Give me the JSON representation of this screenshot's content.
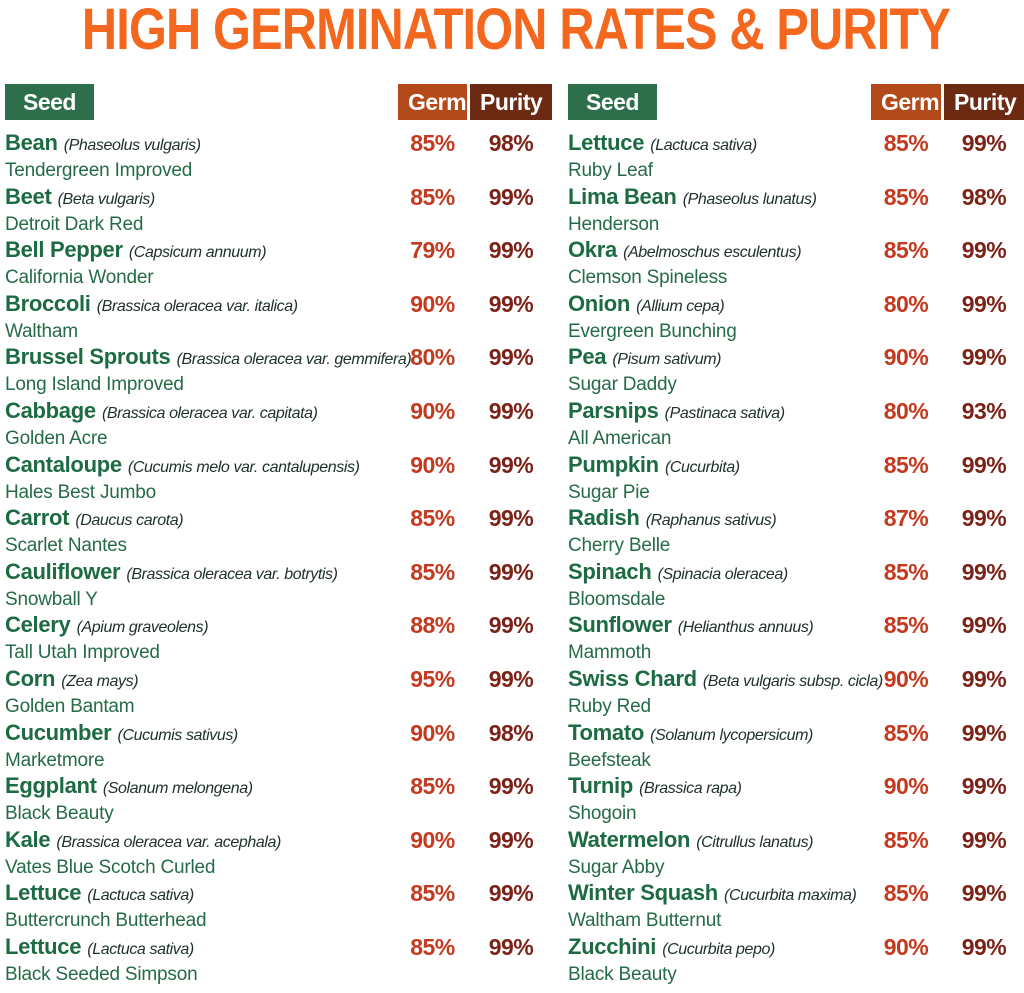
{
  "title": "HIGH GERMINATION RATES & PURITY",
  "colors": {
    "title_orange": "#f4671e",
    "seed_badge_green": "#2d6e4b",
    "germ_badge_orange": "#b34a19",
    "purity_badge_brown": "#6d2a13",
    "seed_name_green": "#1d6b42",
    "variety_green": "#256b47",
    "latin_dark": "#203229",
    "germ_value_red": "#c33a1f",
    "purity_value_maroon": "#7c2318",
    "background": "#ffffff"
  },
  "chart_data": {
    "type": "table",
    "title": "HIGH GERMINATION RATES & PURITY",
    "columns": [
      "Seed",
      "Germ",
      "Purity"
    ],
    "left": [
      {
        "name": "Bean",
        "latin": "(Phaseolus vulgaris)",
        "variety": "Tendergreen Improved",
        "germ": "85%",
        "purity": "98%"
      },
      {
        "name": "Beet",
        "latin": "(Beta vulgaris)",
        "variety": "Detroit Dark Red",
        "germ": "85%",
        "purity": "99%"
      },
      {
        "name": "Bell Pepper",
        "latin": "(Capsicum annuum)",
        "variety": "California Wonder",
        "germ": "79%",
        "purity": "99%"
      },
      {
        "name": "Broccoli",
        "latin": "(Brassica oleracea var. italica)",
        "variety": "Waltham",
        "germ": "90%",
        "purity": "99%"
      },
      {
        "name": "Brussel Sprouts",
        "latin": "(Brassica oleracea var. gemmifera)",
        "variety": "Long Island Improved",
        "germ": "80%",
        "purity": "99%"
      },
      {
        "name": "Cabbage",
        "latin": "(Brassica oleracea var. capitata)",
        "variety": "Golden Acre",
        "germ": "90%",
        "purity": "99%"
      },
      {
        "name": "Cantaloupe",
        "latin": "(Cucumis melo var. cantalupensis)",
        "variety": "Hales Best Jumbo",
        "germ": "90%",
        "purity": "99%"
      },
      {
        "name": "Carrot",
        "latin": "(Daucus carota)",
        "variety": "Scarlet Nantes",
        "germ": "85%",
        "purity": "99%"
      },
      {
        "name": "Cauliflower",
        "latin": "(Brassica oleracea var. botrytis)",
        "variety": "Snowball Y",
        "germ": "85%",
        "purity": "99%"
      },
      {
        "name": "Celery",
        "latin": "(Apium graveolens)",
        "variety": "Tall Utah Improved",
        "germ": "88%",
        "purity": "99%"
      },
      {
        "name": "Corn",
        "latin": "(Zea mays)",
        "variety": "Golden Bantam",
        "germ": "95%",
        "purity": "99%"
      },
      {
        "name": "Cucumber",
        "latin": "(Cucumis sativus)",
        "variety": "Marketmore",
        "germ": "90%",
        "purity": "98%"
      },
      {
        "name": "Eggplant",
        "latin": "(Solanum melongena)",
        "variety": "Black Beauty",
        "germ": "85%",
        "purity": "99%"
      },
      {
        "name": "Kale",
        "latin": "(Brassica oleracea var. acephala)",
        "variety": "Vates Blue Scotch Curled",
        "germ": "90%",
        "purity": "99%"
      },
      {
        "name": "Lettuce",
        "latin": "(Lactuca sativa)",
        "variety": "Buttercrunch Butterhead",
        "germ": "85%",
        "purity": "99%"
      },
      {
        "name": "Lettuce",
        "latin": "(Lactuca sativa)",
        "variety": "Black Seeded Simpson",
        "germ": "85%",
        "purity": "99%"
      }
    ],
    "right": [
      {
        "name": "Lettuce",
        "latin": "(Lactuca sativa)",
        "variety": "Ruby Leaf",
        "germ": "85%",
        "purity": "99%"
      },
      {
        "name": "Lima Bean",
        "latin": "(Phaseolus lunatus)",
        "variety": "Henderson",
        "germ": "85%",
        "purity": "98%"
      },
      {
        "name": "Okra",
        "latin": "(Abelmoschus esculentus)",
        "variety": "Clemson Spineless",
        "germ": "85%",
        "purity": "99%"
      },
      {
        "name": "Onion",
        "latin": "(Allium cepa)",
        "variety": "Evergreen Bunching",
        "germ": "80%",
        "purity": "99%"
      },
      {
        "name": "Pea",
        "latin": "(Pisum sativum)",
        "variety": "Sugar Daddy",
        "germ": "90%",
        "purity": "99%"
      },
      {
        "name": "Parsnips",
        "latin": "(Pastinaca sativa)",
        "variety": "All American",
        "germ": "80%",
        "purity": "93%"
      },
      {
        "name": "Pumpkin",
        "latin": "(Cucurbita)",
        "variety": "Sugar Pie",
        "germ": "85%",
        "purity": "99%"
      },
      {
        "name": "Radish",
        "latin": "(Raphanus sativus)",
        "variety": "Cherry Belle",
        "germ": "87%",
        "purity": "99%"
      },
      {
        "name": "Spinach",
        "latin": "(Spinacia oleracea)",
        "variety": "Bloomsdale",
        "germ": "85%",
        "purity": "99%"
      },
      {
        "name": "Sunflower",
        "latin": "(Helianthus annuus)",
        "variety": "Mammoth",
        "germ": "85%",
        "purity": "99%"
      },
      {
        "name": "Swiss Chard",
        "latin": "(Beta vulgaris subsp. cicla)",
        "variety": "Ruby Red",
        "germ": "90%",
        "purity": "99%"
      },
      {
        "name": "Tomato",
        "latin": "(Solanum lycopersicum)",
        "variety": "Beefsteak",
        "germ": "85%",
        "purity": "99%"
      },
      {
        "name": "Turnip",
        "latin": "(Brassica rapa)",
        "variety": "Shogoin",
        "germ": "90%",
        "purity": "99%"
      },
      {
        "name": "Watermelon",
        "latin": "(Citrullus lanatus)",
        "variety": "Sugar Abby",
        "germ": "85%",
        "purity": "99%"
      },
      {
        "name": "Winter Squash",
        "latin": "(Cucurbita maxima)",
        "variety": "Waltham Butternut",
        "germ": "85%",
        "purity": "99%"
      },
      {
        "name": "Zucchini",
        "latin": "(Cucurbita pepo)",
        "variety": "Black Beauty",
        "germ": "90%",
        "purity": "99%"
      }
    ]
  }
}
